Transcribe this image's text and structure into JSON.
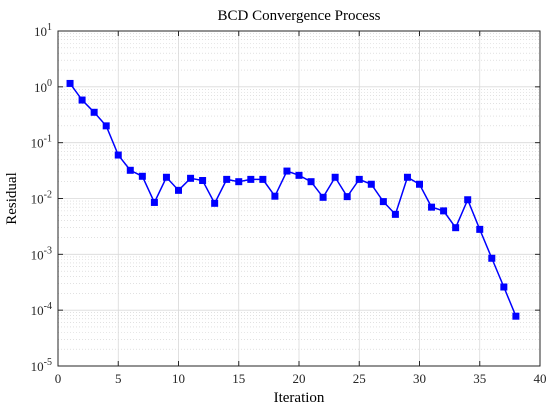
{
  "chart_data": {
    "type": "line",
    "title": "BCD Convergence Process",
    "xlabel": "Iteration",
    "ylabel": "Residual",
    "xlim": [
      0,
      40
    ],
    "ylim_exp": [
      -5,
      1
    ],
    "yscale": "log",
    "grid": true,
    "minor_grid": true,
    "x_ticks": [
      0,
      5,
      10,
      15,
      20,
      25,
      30,
      35,
      40
    ],
    "y_tick_exponents": [
      -5,
      -4,
      -3,
      -2,
      -1,
      0,
      1
    ],
    "series": [
      {
        "color": "#0000ff",
        "marker": "square",
        "x": [
          1,
          2,
          3,
          4,
          5,
          6,
          7,
          8,
          9,
          10,
          11,
          12,
          13,
          14,
          15,
          16,
          17,
          18,
          19,
          20,
          21,
          22,
          23,
          24,
          25,
          26,
          27,
          28,
          29,
          30,
          31,
          32,
          33,
          34,
          35,
          36,
          37,
          38
        ],
        "y": [
          1.15,
          0.58,
          0.35,
          0.2,
          0.06,
          0.032,
          0.025,
          0.0085,
          0.024,
          0.014,
          0.023,
          0.021,
          0.0082,
          0.022,
          0.02,
          0.022,
          0.022,
          0.011,
          0.031,
          0.026,
          0.02,
          0.0105,
          0.024,
          0.0108,
          0.022,
          0.018,
          0.0088,
          0.0052,
          0.024,
          0.018,
          0.007,
          0.006,
          0.003,
          0.0095,
          0.0028,
          0.00085,
          0.00026,
          7.8e-05
        ]
      }
    ]
  }
}
